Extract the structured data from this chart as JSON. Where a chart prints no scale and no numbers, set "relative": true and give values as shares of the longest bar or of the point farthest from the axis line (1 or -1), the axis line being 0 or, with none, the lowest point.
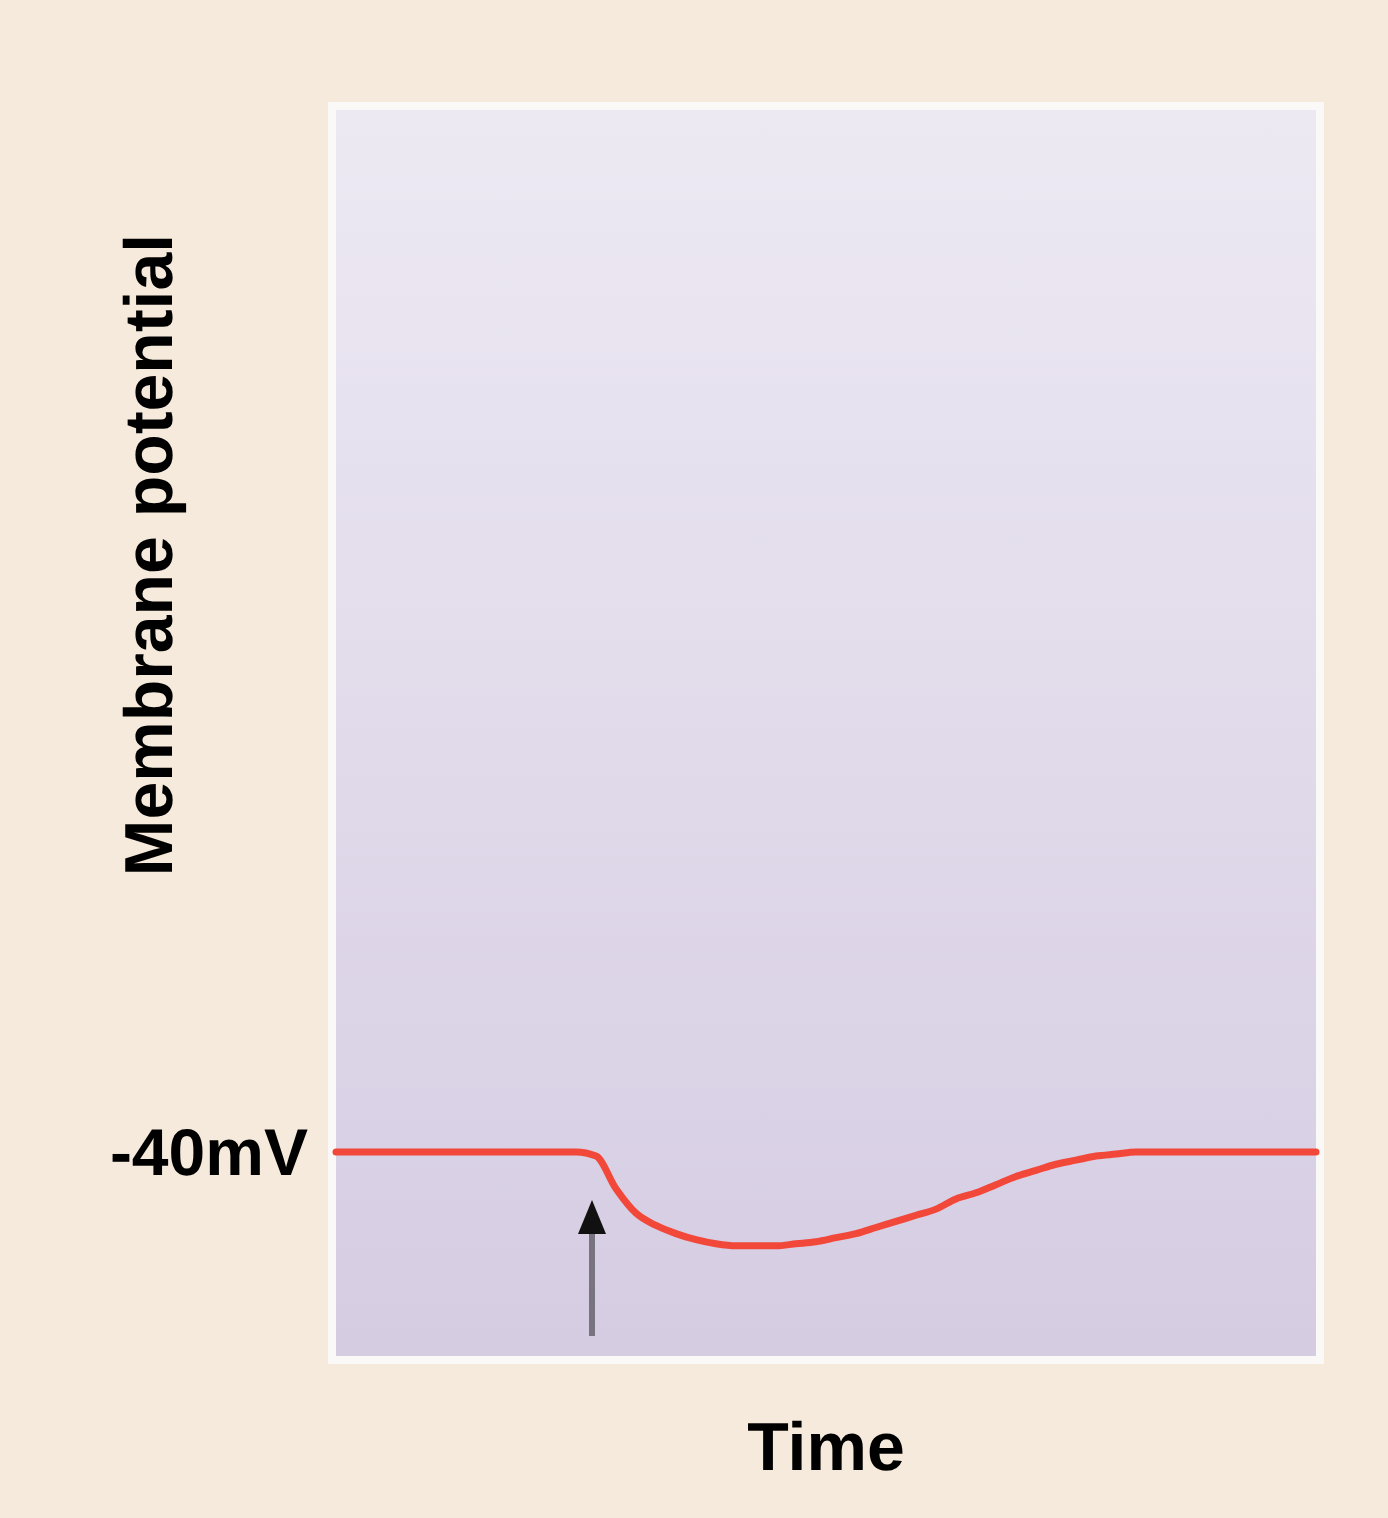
{
  "chart_data": {
    "type": "line",
    "relative": true,
    "xlabel": "Time",
    "ylabel": "Membrane potential",
    "annotations": [
      "-40mV"
    ],
    "categories": [
      null,
      null,
      null,
      null,
      null,
      null,
      null,
      null,
      null,
      null,
      null,
      null,
      null,
      null,
      null,
      null,
      null,
      null,
      null,
      null,
      null,
      null,
      null,
      null,
      null,
      null,
      null,
      null,
      null,
      null,
      null,
      null,
      null,
      null,
      null,
      null,
      null,
      null,
      null,
      null,
      null,
      null,
      null,
      null,
      null,
      null,
      null,
      null,
      null,
      null
    ],
    "series": [
      {
        "color": "#f2483a",
        "values": [
          1,
          1,
          1,
          1,
          1,
          1,
          1,
          1,
          1,
          1,
          1,
          1,
          1,
          0.98,
          0.82,
          0.7,
          0.64,
          0.6,
          0.57,
          0.55,
          0.54,
          0.54,
          0.54,
          0.55,
          0.56,
          0.58,
          0.6,
          0.63,
          0.66,
          0.69,
          0.72,
          0.77,
          0.8,
          0.84,
          0.88,
          0.91,
          0.94,
          0.96,
          0.98,
          0.99,
          1,
          1,
          1,
          1,
          1,
          1,
          1,
          1,
          1,
          1
        ]
      }
    ],
    "marker": "none",
    "line_style": "solid"
  }
}
